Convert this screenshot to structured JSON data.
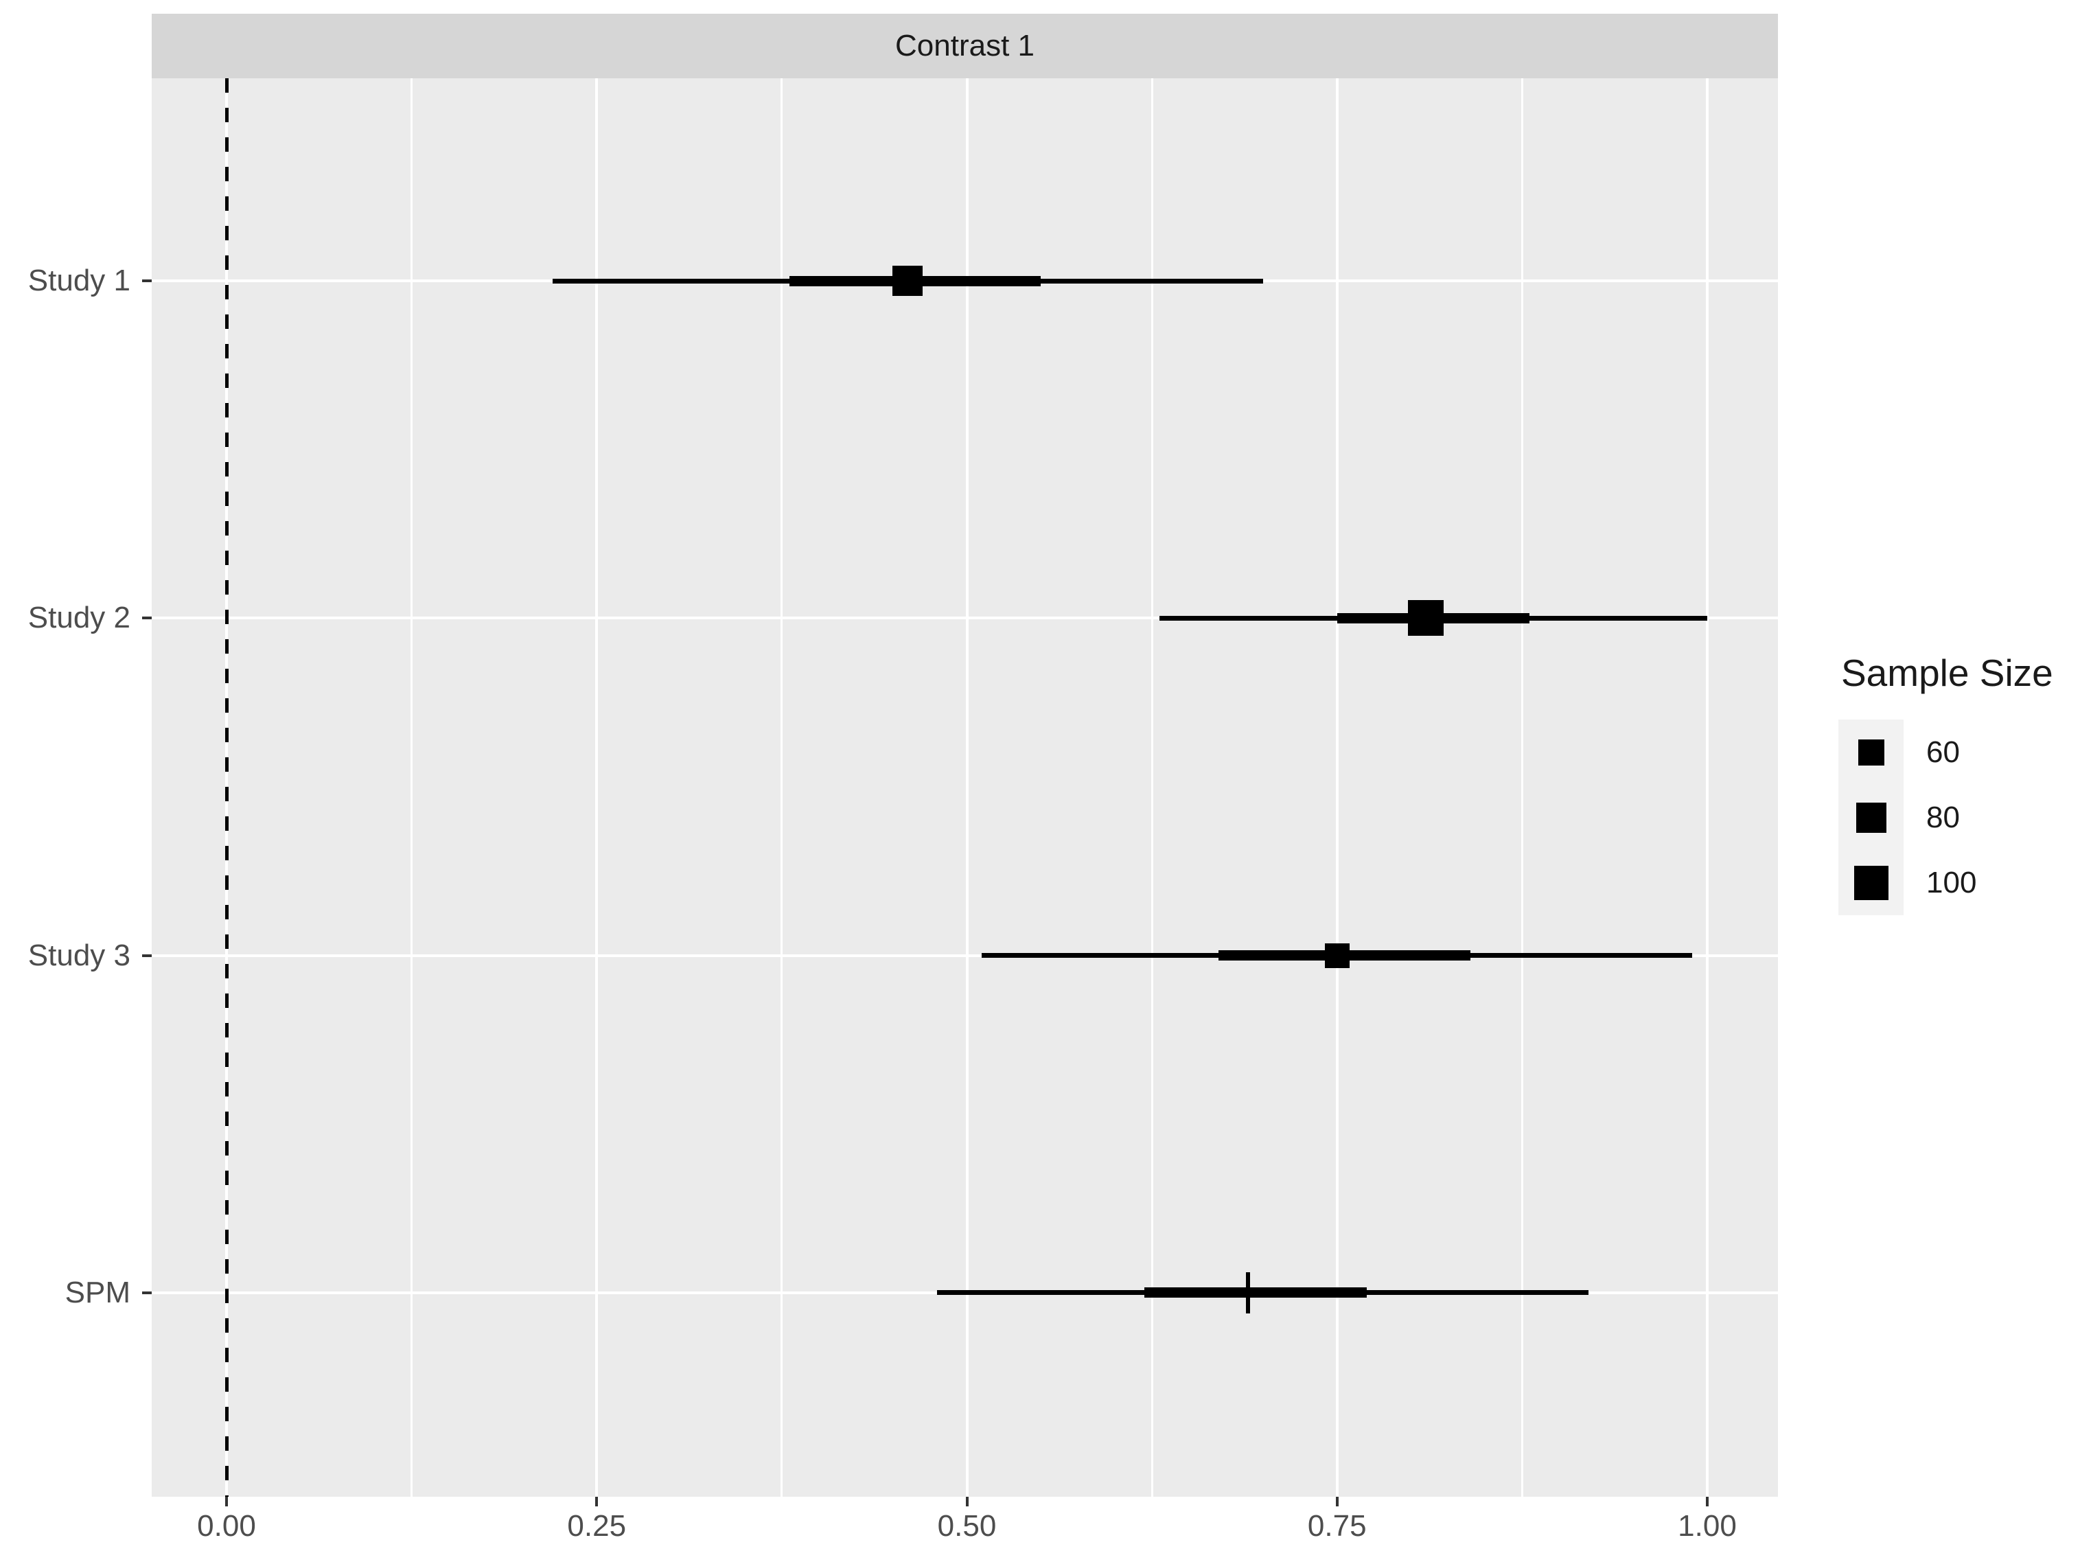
{
  "chart_data": {
    "type": "forest_pointinterval",
    "facet_title": "Contrast 1",
    "x_axis": {
      "ticks": [
        {
          "v": 0.0,
          "label": "0.00"
        },
        {
          "v": 0.25,
          "label": "0.25"
        },
        {
          "v": 0.5,
          "label": "0.50"
        },
        {
          "v": 0.75,
          "label": "0.75"
        },
        {
          "v": 1.0,
          "label": "1.00"
        }
      ],
      "minor_ticks": [
        0.125,
        0.375,
        0.625,
        0.875
      ],
      "limits": [
        -0.05,
        1.05
      ],
      "grid": "on"
    },
    "y_axis": {
      "categories": [
        "Study 1",
        "Study 2",
        "Study 3",
        "SPM"
      ]
    },
    "reference_line": {
      "x": 0,
      "style": "dashed",
      "color": "#000000"
    },
    "rows": [
      {
        "label": "Study 1",
        "point": 0.46,
        "thick_low": 0.38,
        "thick_high": 0.55,
        "thin_low": 0.22,
        "thin_high": 0.7,
        "sample_size": 80,
        "marker": "square"
      },
      {
        "label": "Study 2",
        "point": 0.81,
        "thick_low": 0.75,
        "thick_high": 0.88,
        "thin_low": 0.63,
        "thin_high": 1.0,
        "sample_size": 100,
        "marker": "square"
      },
      {
        "label": "Study 3",
        "point": 0.75,
        "thick_low": 0.67,
        "thick_high": 0.84,
        "thin_low": 0.51,
        "thin_high": 0.99,
        "sample_size": 60,
        "marker": "square"
      },
      {
        "label": "SPM",
        "point": 0.69,
        "thick_low": 0.62,
        "thick_high": 0.77,
        "thin_low": 0.48,
        "thin_high": 0.92,
        "sample_size": null,
        "marker": "tick"
      }
    ],
    "legend": {
      "title": "Sample Size",
      "position": "right",
      "entries": [
        {
          "label": "60",
          "size": 60
        },
        {
          "label": "80",
          "size": 80
        },
        {
          "label": "100",
          "size": 100
        }
      ]
    },
    "colors": {
      "panel_bg": "#ebebeb",
      "strip_bg": "#d6d6d6",
      "grid": "#ffffff",
      "data": "#000000",
      "axis_text": "#4d4d4d",
      "strip_text": "#1a1a1a",
      "legend_key_bg": "#f2f2f2"
    }
  }
}
